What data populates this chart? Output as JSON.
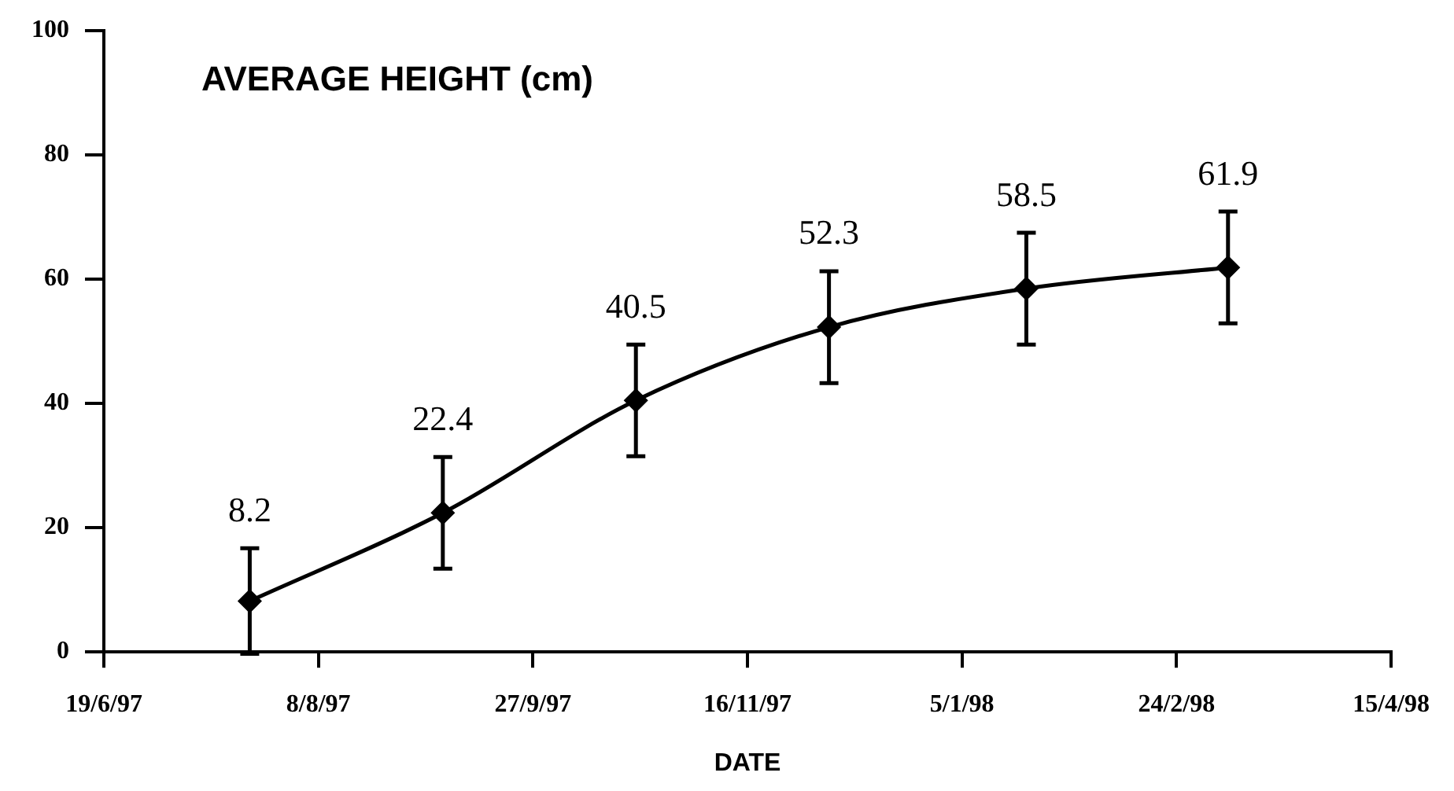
{
  "chart_data": {
    "type": "line",
    "title": "AVERAGE HEIGHT (cm)",
    "xlabel": "DATE",
    "x": [
      "1997-07-23",
      "1997-09-06",
      "1997-10-21",
      "1997-12-05",
      "1998-01-20",
      "1998-03-08"
    ],
    "series": [
      {
        "color": "#000000",
        "values": [
          8.2,
          22.4,
          40.5,
          52.3,
          58.5,
          61.9
        ],
        "errors": [
          8.5,
          9,
          9,
          9,
          9,
          9
        ]
      }
    ],
    "data_labels": true,
    "marker": "diamond",
    "line_style": "solid",
    "grid": false,
    "legend": false,
    "xlim": [
      "1997-06-19",
      "1998-04-15"
    ],
    "xticks": [
      {
        "value": "1997-06-19",
        "label": "19/6/97"
      },
      {
        "value": "1997-08-08",
        "label": "8/8/97"
      },
      {
        "value": "1997-09-27",
        "label": "27/9/97"
      },
      {
        "value": "1997-11-16",
        "label": "16/11/97"
      },
      {
        "value": "1998-01-05",
        "label": "5/1/98"
      },
      {
        "value": "1998-02-24",
        "label": "24/2/98"
      },
      {
        "value": "1998-04-15",
        "label": "15/4/98"
      }
    ],
    "ylim": [
      0,
      100
    ],
    "yticks": [
      0,
      20,
      40,
      60,
      80,
      100
    ]
  }
}
